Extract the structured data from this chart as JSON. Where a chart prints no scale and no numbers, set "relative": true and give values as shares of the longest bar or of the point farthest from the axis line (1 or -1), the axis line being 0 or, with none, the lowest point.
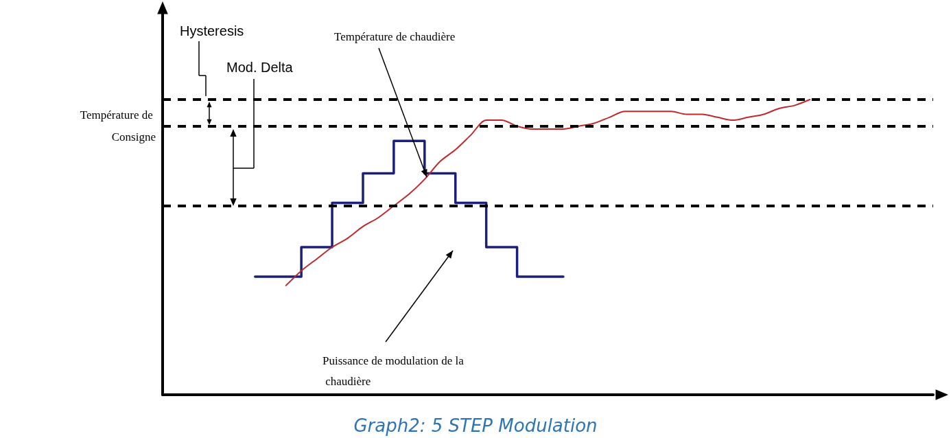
{
  "chart_data": {
    "type": "line",
    "relative": true,
    "title": "Graph2: 5 STEP Modulation",
    "categories": [
      null,
      null,
      null,
      null,
      null,
      null,
      null,
      null,
      null,
      null,
      null,
      null,
      null,
      null,
      null,
      null,
      null,
      null,
      null,
      null,
      null,
      null,
      null,
      null,
      null,
      null,
      null,
      null,
      null,
      null,
      null,
      null,
      null,
      null,
      null,
      null,
      null,
      null,
      null,
      null,
      null,
      null,
      null,
      null,
      null,
      null,
      null,
      null,
      null,
      null,
      null
    ],
    "grid": false,
    "legend": false,
    "marker": "none",
    "series": [
      {
        "name": "Puissance de modulation de la chaudière",
        "type": "step",
        "color": "#1a1f7a",
        "values": [
          null,
          null,
          null,
          null,
          null,
          null,
          0.4,
          0.4,
          0.4,
          0.4,
          0.5,
          0.5,
          0.65,
          0.65,
          0.75,
          0.75,
          0.86,
          0.86,
          0.75,
          0.75,
          0.65,
          0.65,
          0.5,
          0.5,
          0.4,
          0.4,
          0.4,
          null,
          null,
          null,
          null,
          null,
          null,
          null,
          null,
          null,
          null,
          null,
          null,
          null,
          null,
          null,
          null,
          null,
          null,
          null,
          null,
          null,
          null,
          null,
          null
        ]
      },
      {
        "name": "Température de chaudière",
        "type": "line",
        "color": "#c0282d",
        "values": [
          null,
          null,
          null,
          null,
          null,
          null,
          null,
          null,
          0.37,
          0.42,
          0.46,
          0.5,
          0.53,
          0.57,
          0.6,
          0.64,
          0.68,
          0.73,
          0.79,
          0.83,
          0.88,
          0.93,
          0.93,
          0.91,
          0.9,
          0.9,
          0.9,
          0.91,
          0.92,
          0.94,
          0.96,
          0.96,
          0.96,
          0.96,
          0.95,
          0.95,
          0.94,
          0.93,
          0.94,
          0.95,
          0.97,
          0.98,
          1.0,
          null,
          null,
          null,
          null,
          null,
          null,
          null,
          null
        ]
      }
    ],
    "ref_lines": [
      {
        "axis": "y",
        "value": 1.0,
        "label": null,
        "color": "#000000",
        "line_style": "dashed"
      },
      {
        "axis": "y",
        "value": 0.91,
        "label": "Température de Consigne",
        "color": "#000000",
        "line_style": "dashed"
      },
      {
        "axis": "y",
        "value": 0.64,
        "label": null,
        "color": "#000000",
        "line_style": "dashed"
      }
    ],
    "annotations": [
      "Hysteresis",
      "Mod. Delta"
    ]
  }
}
